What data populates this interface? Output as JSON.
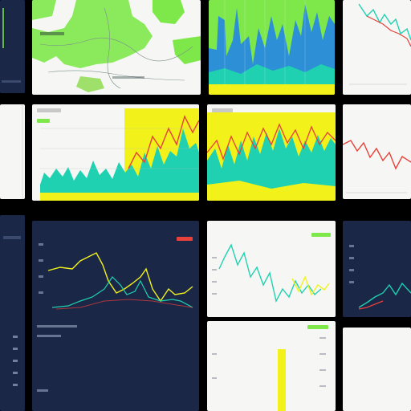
{
  "theme": {
    "background": "#000000",
    "dark_panel": "#1b2747",
    "light_panel": "#f6f7f4",
    "accent_yellow": "#f2f21a",
    "accent_teal": "#1fd1b0",
    "accent_red": "#e8403a",
    "accent_blue": "#2d8fd6",
    "accent_green": "#7ee84a"
  },
  "panels": [
    {
      "id": "top-left-dark",
      "type": "dark",
      "icon": "chart-icon"
    },
    {
      "id": "map-view",
      "type": "light",
      "icon": "map-icon"
    },
    {
      "id": "stacked-area-top",
      "type": "light",
      "icon": "area-chart-icon"
    },
    {
      "id": "line-top-right",
      "type": "light",
      "icon": "line-chart-icon"
    },
    {
      "id": "left-strip-mid",
      "type": "light"
    },
    {
      "id": "area-center-left",
      "type": "light",
      "icon": "area-chart-icon"
    },
    {
      "id": "area-center-right",
      "type": "light",
      "icon": "area-chart-icon"
    },
    {
      "id": "line-right-mid",
      "type": "light",
      "icon": "line-chart-icon"
    },
    {
      "id": "left-strip-bottom",
      "type": "dark"
    },
    {
      "id": "line-dark-bottom",
      "type": "dark",
      "icon": "line-chart-icon"
    },
    {
      "id": "line-light-bottom",
      "type": "light",
      "icon": "line-chart-icon"
    },
    {
      "id": "line-dark-right",
      "type": "dark",
      "icon": "line-chart-icon"
    },
    {
      "id": "bar-light-bottom",
      "type": "light",
      "icon": "bar-chart-icon"
    },
    {
      "id": "bar-right-bottom",
      "type": "light"
    }
  ]
}
